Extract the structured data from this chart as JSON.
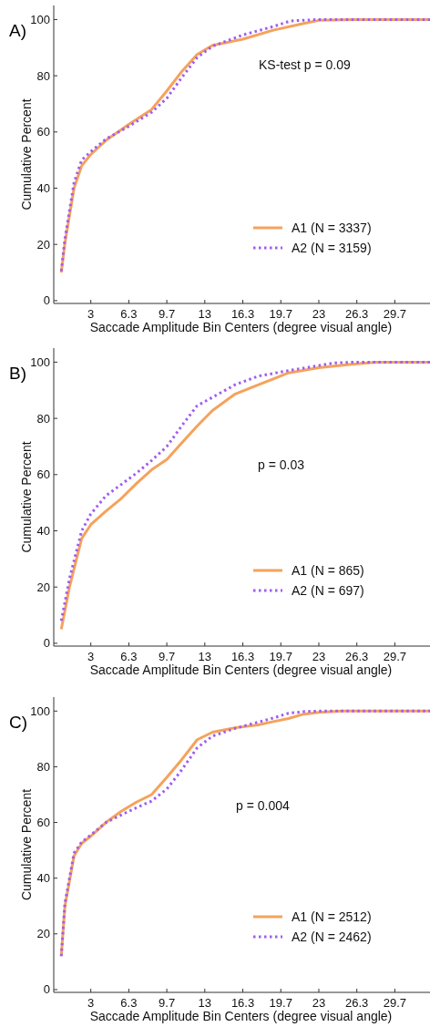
{
  "chart_data": [
    {
      "type": "line",
      "title": "A)",
      "xlabel": "Saccade Amplitude Bin Centers (degree visual angle)",
      "ylabel": "Cumulative Percent",
      "annotations": [
        "KS-test p = 0.09"
      ],
      "legend": "bottom right",
      "xlim": [
        -0.25,
        32.75
      ],
      "xticks": [
        3,
        {
          "value": 6.333,
          "label": "6.3"
        },
        {
          "value": 9.667,
          "label": "9.7"
        },
        13,
        {
          "value": 16.333,
          "label": "16.3"
        },
        {
          "value": 19.667,
          "label": "19.7"
        },
        23,
        {
          "value": 26.333,
          "label": "26.3"
        },
        {
          "value": 29.667,
          "label": "29.7"
        }
      ],
      "ylim": [
        -1,
        105
      ],
      "yticks": [
        0,
        20,
        40,
        60,
        80,
        100
      ],
      "series": [
        {
          "name": "A1 (N = 3337)",
          "color": "#f5a25c",
          "line_style": "solid",
          "x": [
            0.41,
            0.73,
            1.53,
            2.2,
            3,
            4.33,
            6.33,
            8.33,
            9.67,
            11,
            12.33,
            13.67,
            16.33,
            19,
            21.67,
            23,
            26,
            32.75
          ],
          "values": [
            10,
            20.5,
            40,
            48,
            52,
            57,
            62.7,
            68,
            74.6,
            81.6,
            87.6,
            90.8,
            93,
            96.2,
            98.6,
            99.7,
            100,
            100
          ]
        },
        {
          "name": "A2 (N = 3159)",
          "color": "#a05cf0",
          "line_style": "dotted",
          "x": [
            0.41,
            0.73,
            1.53,
            2.2,
            3,
            4.33,
            6.33,
            8.33,
            9.67,
            11,
            12.33,
            13.67,
            16.33,
            19,
            20.5,
            23,
            26,
            32.75
          ],
          "values": [
            10.5,
            22,
            42,
            50,
            53,
            57.5,
            62,
            67,
            72,
            79.5,
            86.5,
            90.5,
            94.5,
            97.5,
            99.5,
            100,
            100,
            100
          ]
        }
      ]
    },
    {
      "type": "line",
      "title": "B)",
      "xlabel": "Saccade Amplitude Bin Centers (degree visual angle)",
      "ylabel": "Cumulative Percent",
      "annotations": [
        "p = 0.03"
      ],
      "legend": "bottom right",
      "xlim": [
        -0.25,
        32.75
      ],
      "xticks": [
        3,
        {
          "value": 6.333,
          "label": "6.3"
        },
        {
          "value": 9.667,
          "label": "9.7"
        },
        13,
        {
          "value": 16.333,
          "label": "16.3"
        },
        {
          "value": 19.667,
          "label": "19.7"
        },
        23,
        {
          "value": 26.333,
          "label": "26.3"
        },
        {
          "value": 29.667,
          "label": "29.7"
        }
      ],
      "ylim": [
        -1,
        105
      ],
      "yticks": [
        0,
        20,
        40,
        60,
        80,
        100
      ],
      "series": [
        {
          "name": "A1 (N = 865)",
          "color": "#f5a25c",
          "line_style": "solid",
          "x": [
            0.41,
            1.13,
            2.2,
            3,
            4.33,
            5.67,
            7,
            8.33,
            9.67,
            11,
            12.33,
            13.67,
            15.67,
            17.67,
            19,
            20.33,
            23,
            25.67,
            28,
            32.75
          ],
          "values": [
            5,
            20,
            37.3,
            42.2,
            47,
            51.5,
            56.8,
            61.7,
            65.4,
            71.4,
            77.3,
            82.8,
            88.7,
            91.9,
            94,
            96.2,
            98,
            99.2,
            100,
            100
          ]
        },
        {
          "name": "A2 (N = 697)",
          "color": "#a05cf0",
          "line_style": "dotted",
          "x": [
            0.41,
            1.13,
            2.2,
            3,
            4.33,
            5.67,
            7,
            8.33,
            9.67,
            11,
            12.33,
            13.67,
            15.67,
            17.67,
            19,
            20.33,
            23,
            24.33,
            26,
            32.75
          ],
          "values": [
            8,
            23,
            40,
            46,
            52.5,
            56.5,
            60.5,
            65,
            70,
            77.5,
            84.5,
            87.5,
            92,
            95,
            96,
            97,
            98.8,
            99.7,
            100,
            100
          ]
        }
      ]
    },
    {
      "type": "line",
      "title": "C)",
      "xlabel": "Saccade Amplitude Bin Centers (degree visual angle)",
      "ylabel": "Cumulative Percent",
      "annotations": [
        "p = 0.004"
      ],
      "legend": "bottom right",
      "xlim": [
        -0.25,
        32.75
      ],
      "xticks": [
        3,
        {
          "value": 6.333,
          "label": "6.3"
        },
        {
          "value": 9.667,
          "label": "9.7"
        },
        13,
        {
          "value": 16.333,
          "label": "16.3"
        },
        {
          "value": 19.667,
          "label": "19.7"
        },
        23,
        {
          "value": 26.333,
          "label": "26.3"
        },
        {
          "value": 29.667,
          "label": "29.7"
        }
      ],
      "ylim": [
        -1,
        105
      ],
      "yticks": [
        0,
        20,
        40,
        60,
        80,
        100
      ],
      "series": [
        {
          "name": "A1 (N = 2512)",
          "color": "#f5a25c",
          "line_style": "solid",
          "x": [
            0.41,
            0.73,
            1.53,
            2.2,
            3,
            4.33,
            5.67,
            7,
            8.33,
            9.67,
            11,
            12.33,
            13.67,
            15.67,
            17.67,
            19,
            20.33,
            21.67,
            23,
            25,
            32.75
          ],
          "values": [
            12,
            30,
            48,
            52.5,
            55.1,
            60,
            64,
            67.3,
            70,
            76.2,
            82.7,
            89.7,
            92.4,
            94,
            95,
            96.2,
            97.3,
            98.9,
            99.5,
            100,
            100
          ]
        },
        {
          "name": "A2 (N = 2462)",
          "color": "#a05cf0",
          "line_style": "dotted",
          "x": [
            0.41,
            0.73,
            1.53,
            2.2,
            3,
            4.33,
            5.67,
            7,
            8.33,
            9.67,
            11,
            12.33,
            13.67,
            15.67,
            17.67,
            19,
            20.33,
            21.67,
            23,
            32.75
          ],
          "values": [
            12,
            31,
            49,
            53,
            55.5,
            60,
            62.7,
            65.3,
            67.7,
            72,
            79,
            86.8,
            91,
            93.8,
            96,
            97.5,
            99.2,
            99.8,
            100,
            100
          ]
        }
      ]
    }
  ]
}
